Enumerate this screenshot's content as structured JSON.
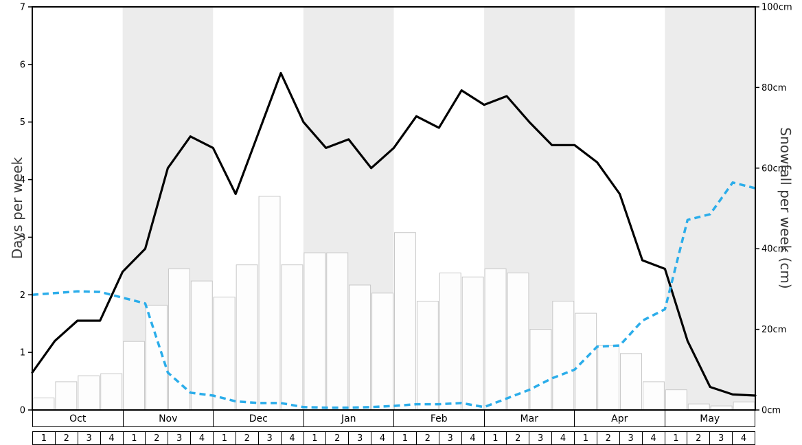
{
  "chart_data": {
    "type": "line",
    "title": "",
    "left_axis": {
      "label": "Days per week",
      "min": 0,
      "max": 7,
      "ticks": [
        0,
        1,
        2,
        3,
        4,
        5,
        6,
        7
      ]
    },
    "right_axis": {
      "label": "Snowfall per week (cm)",
      "min": 0,
      "max": 100,
      "ticks": [
        0,
        20,
        40,
        60,
        80,
        100
      ],
      "tick_suffix": "cm"
    },
    "months": [
      "Oct",
      "Nov",
      "Dec",
      "Jan",
      "Feb",
      "Mar",
      "Apr",
      "May"
    ],
    "week_labels": [
      "1",
      "2",
      "3",
      "4"
    ],
    "shaded_months": [
      "Nov",
      "Jan",
      "Mar",
      "May"
    ],
    "legend_position": "none",
    "grid": false,
    "series": [
      {
        "name": "days-per-week",
        "type": "line",
        "style": "solid",
        "color": "#000000",
        "width": 3.2,
        "axis": "left",
        "values": [
          0.65,
          1.2,
          1.55,
          1.55,
          2.4,
          2.8,
          4.2,
          4.75,
          4.55,
          3.75,
          4.8,
          5.85,
          5.0,
          4.55,
          4.7,
          4.2,
          4.55,
          5.1,
          4.9,
          5.55,
          5.3,
          5.45,
          5.0,
          4.6,
          4.6,
          4.3,
          3.75,
          2.6,
          2.45,
          1.2,
          0.4,
          0.27,
          0.25
        ]
      },
      {
        "name": "dashed-indicator",
        "type": "line",
        "style": "dashed",
        "color": "#2badea",
        "width": 3.5,
        "axis": "left",
        "values": [
          2.0,
          2.03,
          2.06,
          2.05,
          1.95,
          1.85,
          0.65,
          0.3,
          0.25,
          0.15,
          0.12,
          0.12,
          0.05,
          0.04,
          0.04,
          0.05,
          0.07,
          0.1,
          0.1,
          0.12,
          0.05,
          0.2,
          0.35,
          0.55,
          0.7,
          1.1,
          1.12,
          1.55,
          1.75,
          3.3,
          3.4,
          3.95,
          3.85
        ]
      },
      {
        "name": "snowfall-per-week",
        "type": "bar",
        "axis": "right",
        "fill": "#fdfdfd",
        "border": "#c8c8c8",
        "values_cm": [
          3,
          7,
          8.5,
          9,
          17,
          26,
          35,
          32,
          28,
          36,
          53,
          36,
          39,
          39,
          31,
          29,
          44,
          27,
          34,
          33,
          35,
          34,
          20,
          27,
          24,
          16,
          14,
          7,
          5,
          1.5,
          1,
          2
        ]
      }
    ]
  },
  "colors": {
    "background": "#ffffff",
    "band": "#ececec",
    "frame": "#000000",
    "tick_text": "#000000",
    "axis_title": "#3a3a3a"
  }
}
